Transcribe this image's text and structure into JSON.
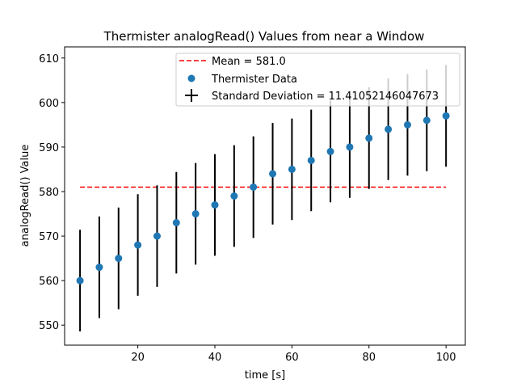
{
  "chart_data": {
    "type": "scatter",
    "title": "Thermister analogRead() Values from near a Window",
    "xlabel": "time [s]",
    "ylabel": "analogRead() Value",
    "xlim": [
      1,
      105
    ],
    "ylim": [
      545.5,
      612.5
    ],
    "xticks": [
      20,
      40,
      60,
      80,
      100
    ],
    "yticks": [
      550,
      560,
      570,
      580,
      590,
      600,
      610
    ],
    "x": [
      5,
      10,
      15,
      20,
      25,
      30,
      35,
      40,
      45,
      50,
      55,
      60,
      65,
      70,
      75,
      80,
      85,
      90,
      95,
      100
    ],
    "series": [
      {
        "name": "Thermister Data",
        "values": [
          560,
          563,
          565,
          568,
          570,
          573,
          575,
          577,
          579,
          581,
          584,
          585,
          587,
          589,
          590,
          592,
          594,
          595,
          596,
          597
        ],
        "color": "#1f77b4"
      }
    ],
    "error": 11.41052146047673,
    "mean": 581.0,
    "mean_color": "#ff0000",
    "errorbar_color": "#000000",
    "legend": {
      "position": "top-right",
      "entries": [
        "Mean = 581.0",
        "Thermister Data",
        "Standard Deviation = 11.41052146047673"
      ]
    },
    "grid": false
  }
}
